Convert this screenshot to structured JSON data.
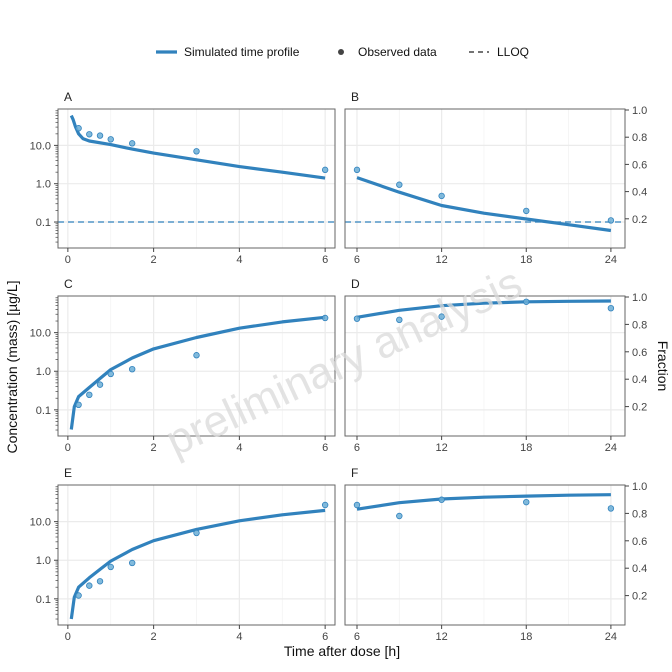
{
  "chart_data": {
    "type": "line",
    "legend": {
      "placement": "top",
      "entries": [
        {
          "label": "Simulated time profile",
          "kind": "line"
        },
        {
          "label": "Observed data",
          "kind": "point"
        },
        {
          "label": "LLOQ",
          "kind": "dashed-line"
        }
      ]
    },
    "xlabel": "Time after dose [h]",
    "ylabel": "Concentration (mass) [µg/L]",
    "ylabel_right": "Fraction",
    "watermark": "preliminary analysis",
    "y_scale": "log",
    "ylim": [
      0.021,
      89
    ],
    "y_ticks": [
      0.1,
      1,
      10
    ],
    "y_tick_labels": [
      "0.1",
      "1.0",
      "10.0"
    ],
    "y_right_ylim": [
      0,
      1.0
    ],
    "y_right_ticks": [
      0.2,
      0.4,
      0.6,
      0.8,
      1.0
    ],
    "y_right_tick_labels": [
      "0.2",
      "0.4",
      "0.6",
      "0.8",
      "1.0"
    ],
    "lloq": 0.1,
    "grid": true,
    "colors": {
      "line": "#3182bd",
      "point_fill": "#6baed6",
      "point_stroke": "#3182bd",
      "lloq": "#3182bd",
      "grid": "#ebebeb",
      "watermark": "#d9d9d9"
    },
    "panels": [
      {
        "label": "A",
        "xlim": [
          -0.23,
          6.23
        ],
        "x_ticks": [
          0,
          2,
          4,
          6
        ],
        "x_tick_labels": [
          "0",
          "2",
          "4",
          "6"
        ],
        "show_lloq": true,
        "simulated": {
          "x": [
            0.08,
            0.12,
            0.18,
            0.25,
            0.35,
            0.5,
            1,
            1.5,
            2,
            3,
            4,
            5,
            6
          ],
          "y": [
            60,
            48,
            30,
            20,
            15,
            13,
            10.5,
            8,
            6.3,
            4.2,
            2.8,
            2,
            1.4
          ]
        },
        "observed": {
          "x": [
            0.25,
            0.5,
            0.75,
            1,
            1.5,
            3,
            6
          ],
          "y": [
            28,
            19.5,
            18,
            14.4,
            11.3,
            7,
            2.3
          ]
        }
      },
      {
        "label": "B",
        "xlim": [
          5.15,
          25.0
        ],
        "x_ticks": [
          6,
          12,
          18,
          24
        ],
        "x_tick_labels": [
          "6",
          "12",
          "18",
          "24"
        ],
        "show_lloq": true,
        "right_axis": true,
        "simulated": {
          "x": [
            6,
            9,
            12,
            15,
            18,
            21,
            24
          ],
          "y": [
            1.44,
            0.6,
            0.27,
            0.17,
            0.12,
            0.085,
            0.06
          ]
        },
        "observed": {
          "x": [
            6,
            9,
            12,
            18,
            24
          ],
          "y": [
            2.3,
            0.94,
            0.48,
            0.195,
            0.11
          ]
        }
      },
      {
        "label": "C",
        "xlim": [
          -0.23,
          6.23
        ],
        "x_ticks": [
          0,
          2,
          4,
          6
        ],
        "x_tick_labels": [
          "0",
          "2",
          "4",
          "6"
        ],
        "show_lloq": false,
        "simulated": {
          "x": [
            0.08,
            0.15,
            0.25,
            0.5,
            0.75,
            1,
            1.5,
            2,
            3,
            4,
            5,
            6
          ],
          "y": [
            0.031,
            0.12,
            0.22,
            0.38,
            0.65,
            1.1,
            2.2,
            3.8,
            7.5,
            13,
            19,
            25
          ]
        },
        "observed": {
          "x": [
            0.25,
            0.5,
            0.75,
            1,
            1.5,
            3,
            6
          ],
          "y": [
            0.135,
            0.245,
            0.45,
            0.85,
            1.13,
            2.6,
            24
          ]
        }
      },
      {
        "label": "D",
        "xlim": [
          5.15,
          25.0
        ],
        "x_ticks": [
          6,
          12,
          18,
          24
        ],
        "x_tick_labels": [
          "6",
          "12",
          "18",
          "24"
        ],
        "show_lloq": false,
        "right_axis": true,
        "simulated": {
          "x": [
            6,
            9,
            12,
            15,
            18,
            21,
            24
          ],
          "y": [
            25,
            38,
            50,
            58,
            63,
            65,
            66
          ]
        },
        "observed": {
          "x": [
            6,
            9,
            12,
            18,
            24
          ],
          "y": [
            23,
            21.5,
            26,
            63,
            43
          ]
        }
      },
      {
        "label": "E",
        "xlim": [
          -0.23,
          6.23
        ],
        "x_ticks": [
          0,
          2,
          4,
          6
        ],
        "x_tick_labels": [
          "0",
          "2",
          "4",
          "6"
        ],
        "show_lloq": false,
        "simulated": {
          "x": [
            0.08,
            0.15,
            0.25,
            0.5,
            0.75,
            1,
            1.5,
            2,
            3,
            4,
            5,
            6
          ],
          "y": [
            0.03,
            0.11,
            0.2,
            0.35,
            0.58,
            0.95,
            1.9,
            3.2,
            6.3,
            10.5,
            15,
            19.5
          ]
        },
        "observed": {
          "x": [
            0.25,
            0.5,
            0.75,
            1,
            1.5,
            3,
            6
          ],
          "y": [
            0.122,
            0.22,
            0.285,
            0.67,
            0.85,
            5.1,
            27
          ]
        }
      },
      {
        "label": "F",
        "xlim": [
          5.15,
          25.0
        ],
        "x_ticks": [
          6,
          12,
          18,
          24
        ],
        "x_tick_labels": [
          "6",
          "12",
          "18",
          "24"
        ],
        "show_lloq": false,
        "right_axis": true,
        "simulated": {
          "x": [
            6,
            9,
            12,
            15,
            18,
            21,
            24
          ],
          "y": [
            21,
            31,
            38.6,
            43,
            46,
            48.5,
            50
          ]
        },
        "observed": {
          "x": [
            6,
            9,
            12,
            18,
            24
          ],
          "y": [
            27,
            14,
            37,
            32,
            22
          ]
        }
      }
    ]
  }
}
